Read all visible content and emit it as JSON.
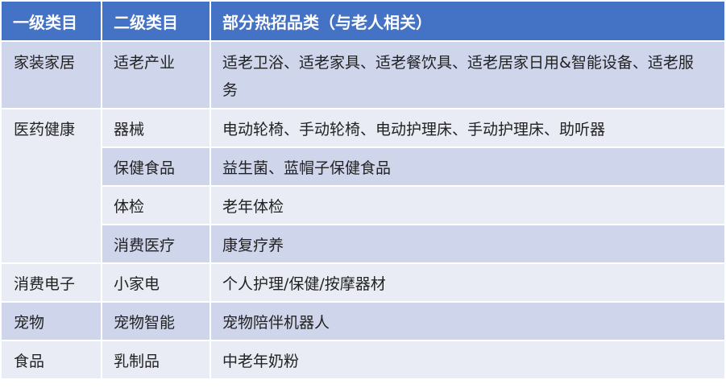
{
  "headers": [
    "一级类目",
    "二级类目",
    "部分热招品类（与老人相关）"
  ],
  "rows": [
    {
      "level1": "家装家居",
      "level2": "适老产业",
      "items": "适老卫浴、适老家具、适老餐饮具、适老居家日用&智能设备、适老服务"
    },
    {
      "level1": "医药健康",
      "level2": "器械",
      "items": "电动轮椅、手动轮椅、电动护理床、手动护理床、助听器"
    },
    {
      "level1": "",
      "level2": "保健食品",
      "items": "益生菌、蓝帽子保健食品"
    },
    {
      "level1": "",
      "level2": "体检",
      "items": "老年体检"
    },
    {
      "level1": "",
      "level2": "消费医疗",
      "items": "康复疗养"
    },
    {
      "level1": "消费电子",
      "level2": "小家电",
      "items": "个人护理/保健/按摩器材"
    },
    {
      "level1": "宠物",
      "level2": "宠物智能",
      "items": "宠物陪伴机器人"
    },
    {
      "level1": "食品",
      "level2": "乳制品",
      "items": "中老年奶粉"
    }
  ],
  "colors": {
    "header": "#4472C4",
    "band_dark": "#CFD5EA",
    "band_light": "#E9EBF5"
  }
}
